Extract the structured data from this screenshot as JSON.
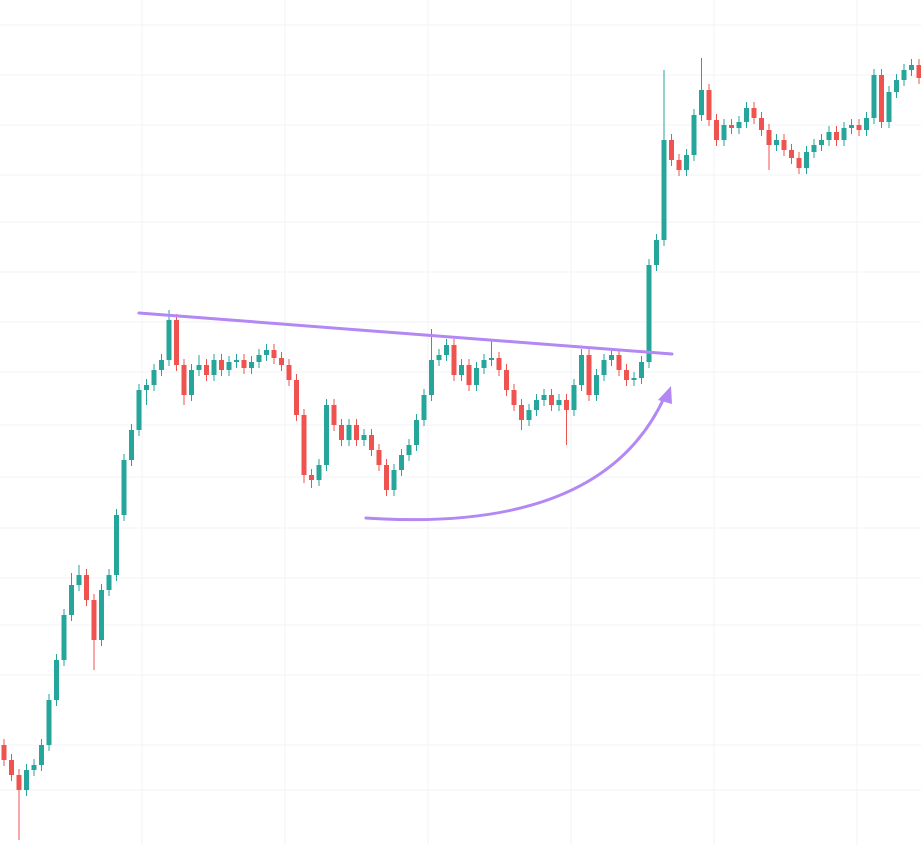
{
  "chart_data": {
    "type": "candlestick",
    "ylim": [
      0,
      845
    ],
    "up_color": "#26a69a",
    "down_color": "#ef5350",
    "open": [
      100,
      85,
      70,
      55,
      75,
      80,
      100,
      145,
      185,
      230,
      260,
      270,
      245,
      205,
      255,
      270,
      330,
      385,
      415,
      455,
      460,
      475,
      485,
      525,
      480,
      450,
      475,
      480,
      470,
      485,
      475,
      483,
      485,
      477,
      483,
      490,
      495,
      487,
      480,
      465,
      430,
      370,
      365,
      380,
      440,
      420,
      405,
      420,
      405,
      410,
      395,
      380,
      355,
      375,
      390,
      400,
      425,
      450,
      485,
      490,
      500,
      470,
      480,
      460,
      477,
      485,
      487,
      475,
      455,
      440,
      425,
      435,
      445,
      450,
      440,
      445,
      435,
      460,
      490,
      450,
      470,
      485,
      490,
      475,
      465,
      467,
      483,
      580,
      605,
      705,
      685,
      675,
      690,
      730,
      755,
      725,
      705,
      720,
      717,
      723,
      737,
      727,
      715,
      700,
      705,
      695,
      687,
      677,
      693,
      700,
      705,
      713,
      705,
      717,
      720,
      715,
      727,
      770,
      723,
      753,
      765,
      775,
      780
    ],
    "high": [
      106,
      91,
      76,
      81,
      86,
      106,
      151,
      191,
      236,
      272,
      280,
      276,
      251,
      261,
      276,
      336,
      391,
      421,
      461,
      466,
      481,
      491,
      535,
      531,
      486,
      481,
      490,
      486,
      491,
      491,
      489,
      491,
      491,
      489,
      496,
      501,
      501,
      493,
      486,
      471,
      436,
      376,
      386,
      446,
      446,
      426,
      426,
      426,
      416,
      416,
      401,
      386,
      381,
      396,
      406,
      431,
      456,
      516,
      496,
      506,
      506,
      486,
      486,
      483,
      491,
      505,
      493,
      481,
      461,
      446,
      441,
      451,
      456,
      456,
      451,
      451,
      466,
      496,
      496,
      476,
      491,
      496,
      496,
      481,
      473,
      489,
      586,
      611,
      775,
      711,
      691,
      696,
      736,
      787,
      761,
      731,
      726,
      726,
      729,
      743,
      743,
      733,
      721,
      711,
      711,
      701,
      693,
      699,
      706,
      711,
      719,
      719,
      723,
      726,
      726,
      733,
      776,
      776,
      759,
      771,
      781,
      786,
      786
    ],
    "low": [
      79,
      64,
      5,
      49,
      69,
      74,
      94,
      139,
      179,
      224,
      254,
      239,
      175,
      199,
      249,
      264,
      324,
      379,
      409,
      440,
      454,
      469,
      479,
      474,
      440,
      444,
      469,
      464,
      464,
      469,
      469,
      477,
      471,
      471,
      477,
      484,
      481,
      474,
      459,
      424,
      362,
      357,
      359,
      374,
      414,
      399,
      399,
      399,
      399,
      389,
      374,
      349,
      349,
      369,
      384,
      394,
      419,
      444,
      479,
      484,
      464,
      464,
      454,
      454,
      471,
      479,
      469,
      449,
      434,
      415,
      419,
      429,
      439,
      434,
      434,
      400,
      429,
      454,
      444,
      444,
      464,
      479,
      469,
      459,
      459,
      461,
      477,
      574,
      599,
      679,
      669,
      669,
      684,
      724,
      719,
      699,
      699,
      711,
      711,
      717,
      721,
      709,
      675,
      694,
      689,
      681,
      671,
      671,
      687,
      694,
      699,
      699,
      699,
      711,
      709,
      709,
      721,
      717,
      717,
      747,
      759,
      769,
      761
    ],
    "close": [
      85,
      70,
      55,
      75,
      80,
      100,
      145,
      185,
      230,
      260,
      270,
      245,
      205,
      255,
      270,
      330,
      385,
      415,
      455,
      460,
      475,
      485,
      525,
      480,
      450,
      475,
      480,
      470,
      485,
      475,
      483,
      485,
      477,
      483,
      490,
      495,
      487,
      480,
      465,
      430,
      370,
      365,
      380,
      440,
      420,
      405,
      420,
      405,
      410,
      395,
      380,
      355,
      375,
      390,
      400,
      425,
      450,
      485,
      490,
      500,
      470,
      480,
      460,
      477,
      485,
      487,
      475,
      455,
      440,
      425,
      435,
      445,
      450,
      440,
      445,
      435,
      460,
      490,
      450,
      470,
      485,
      490,
      475,
      465,
      467,
      483,
      580,
      605,
      705,
      685,
      675,
      690,
      730,
      755,
      725,
      705,
      720,
      717,
      723,
      737,
      727,
      715,
      700,
      705,
      695,
      687,
      677,
      693,
      700,
      705,
      713,
      705,
      717,
      720,
      715,
      727,
      770,
      723,
      753,
      765,
      775,
      780,
      767
    ]
  }
}
